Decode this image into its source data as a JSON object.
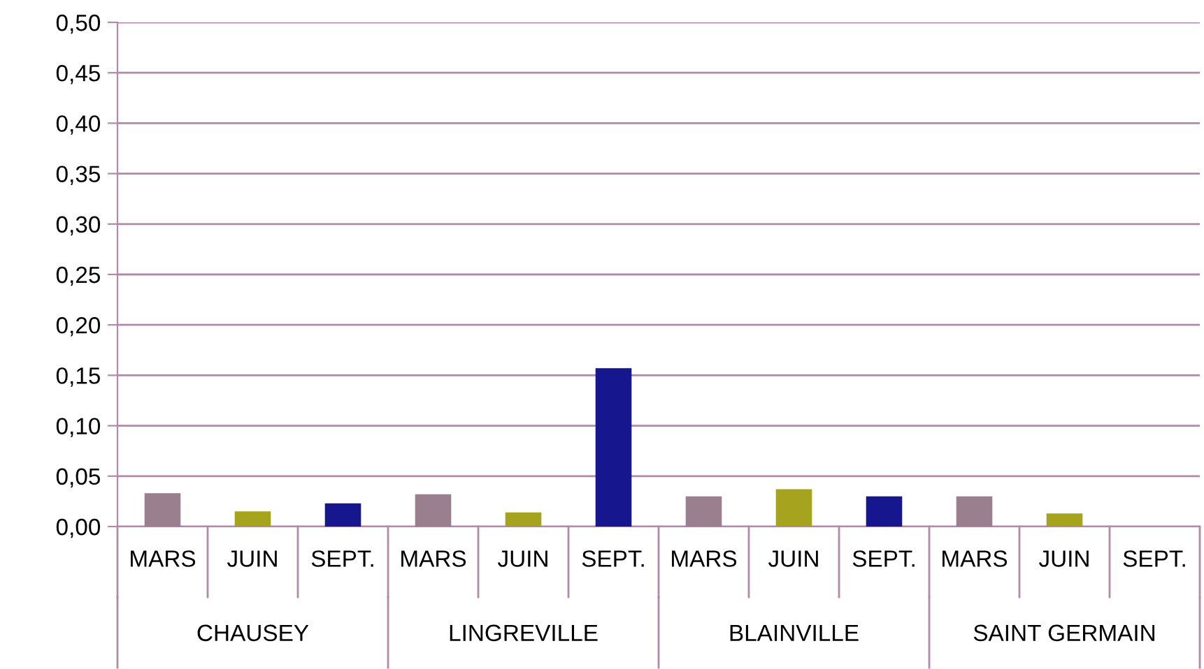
{
  "chart_data": {
    "type": "bar",
    "categories": [
      "MARS",
      "JUIN",
      "SEPT.",
      "MARS",
      "JUIN",
      "SEPT.",
      "MARS",
      "JUIN",
      "SEPT.",
      "MARS",
      "JUIN",
      "SEPT."
    ],
    "values": [
      0.033,
      0.015,
      0.023,
      0.032,
      0.014,
      0.157,
      0.03,
      0.037,
      0.03,
      0.03,
      0.013,
      0
    ],
    "colors": [
      "#9a7f8e",
      "#a6a41e",
      "#16168f",
      "#9a7f8e",
      "#a6a41e",
      "#16168f",
      "#9a7f8e",
      "#a6a41e",
      "#16168f",
      "#9a7f8e",
      "#a6a41e",
      "#16168f"
    ],
    "annotations": [
      "CHAUSEY",
      "LINGREVILLE",
      "BLAINVILLE",
      "SAINT GERMAIN"
    ],
    "ylim": [
      0,
      0.5
    ],
    "yticks": [
      {
        "value": 0,
        "label": "0,00"
      },
      {
        "value": 0.05,
        "label": "0,05"
      },
      {
        "value": 0.1,
        "label": "0,10"
      },
      {
        "value": 0.15,
        "label": "0,15"
      },
      {
        "value": 0.2,
        "label": "0,20"
      },
      {
        "value": 0.25,
        "label": "0,25"
      },
      {
        "value": 0.3,
        "label": "0,30"
      },
      {
        "value": 0.35,
        "label": "0,35"
      },
      {
        "value": 0.4,
        "label": "0,40"
      },
      {
        "value": 0.45,
        "label": "0,45"
      },
      {
        "value": 0.5,
        "label": "0,50"
      }
    ],
    "grid": "y"
  }
}
